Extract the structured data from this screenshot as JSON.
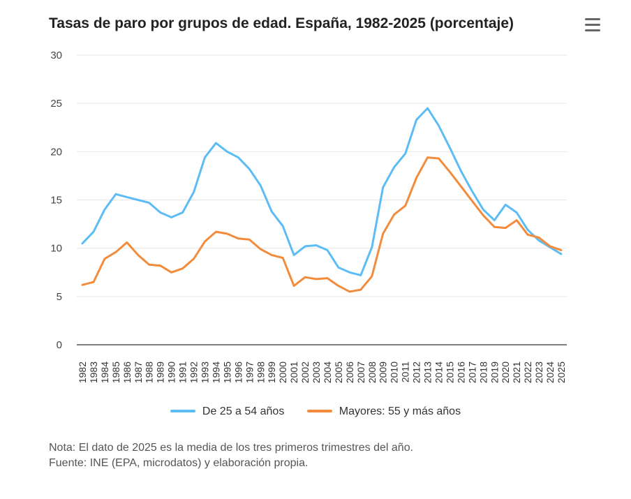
{
  "title": "Tasas de paro por grupos de edad. España, 1982-2025 (porcentaje)",
  "menu_icon": "hamburger-menu-icon",
  "chart_data": {
    "type": "line",
    "title": "Tasas de paro por grupos de edad. España, 1982-2025 (porcentaje)",
    "xlabel": "",
    "ylabel": "",
    "ylim": [
      0,
      30
    ],
    "yticks": [
      0,
      5,
      10,
      15,
      20,
      25,
      30
    ],
    "grid": true,
    "legend_position": "bottom",
    "categories": [
      "1982",
      "1983",
      "1984",
      "1985",
      "1986",
      "1987",
      "1988",
      "1989",
      "1990",
      "1991",
      "1992",
      "1993",
      "1994",
      "1995",
      "1996",
      "1997",
      "1998",
      "1999",
      "2000",
      "2001",
      "2002",
      "2003",
      "2004",
      "2005",
      "2006",
      "2007",
      "2008",
      "2009",
      "2010",
      "2011",
      "2012",
      "2013",
      "2014",
      "2015",
      "2016",
      "2017",
      "2018",
      "2019",
      "2020",
      "2021",
      "2022",
      "2023",
      "2024",
      "2025"
    ],
    "series": [
      {
        "name": "De 25 a 54 años",
        "color": "#5cbcf5",
        "values": [
          10.5,
          11.7,
          14.0,
          15.6,
          15.3,
          15.0,
          14.7,
          13.7,
          13.2,
          13.7,
          15.8,
          19.4,
          20.9,
          20.0,
          19.4,
          18.2,
          16.5,
          13.8,
          12.3,
          9.3,
          10.2,
          10.3,
          9.8,
          8.0,
          7.5,
          7.2,
          10.1,
          16.3,
          18.4,
          19.8,
          23.3,
          24.5,
          22.7,
          20.4,
          18.0,
          15.9,
          14.0,
          12.9,
          14.5,
          13.7,
          11.9,
          10.8,
          10.1,
          9.4
        ]
      },
      {
        "name": "Mayores: 55 y más años",
        "color": "#f28c3c",
        "values": [
          6.2,
          6.5,
          8.9,
          9.6,
          10.6,
          9.3,
          8.3,
          8.2,
          7.5,
          7.9,
          8.9,
          10.7,
          11.7,
          11.5,
          11.0,
          10.9,
          9.9,
          9.3,
          9.0,
          6.1,
          7.0,
          6.8,
          6.9,
          6.1,
          5.5,
          5.7,
          7.1,
          11.5,
          13.5,
          14.4,
          17.3,
          19.4,
          19.3,
          17.9,
          16.4,
          14.9,
          13.4,
          12.2,
          12.1,
          12.9,
          11.4,
          11.1,
          10.2,
          9.8
        ]
      }
    ]
  },
  "notes": {
    "line1": "Nota: El dato de 2025 es la media de los tres primeros trimestres del año.",
    "line2": "Fuente: INE (EPA, microdatos) y elaboración propia."
  }
}
